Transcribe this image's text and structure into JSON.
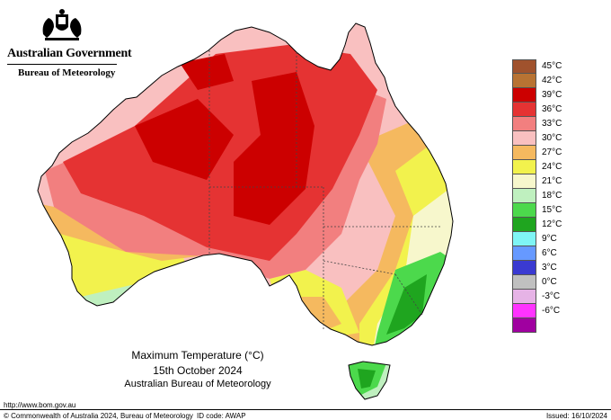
{
  "header": {
    "government": "Australian Government",
    "bureau": "Bureau of Meteorology"
  },
  "map": {
    "title_line1": "Maximum Temperature (°C)",
    "title_line2": "15th October 2024",
    "title_line3": "Australian Bureau of Meteorology"
  },
  "legend": {
    "items": [
      {
        "label": "45°C",
        "color": "#a0522d"
      },
      {
        "label": "42°C",
        "color": "#b87333"
      },
      {
        "label": "39°C",
        "color": "#cc0000"
      },
      {
        "label": "36°C",
        "color": "#e53333"
      },
      {
        "label": "33°C",
        "color": "#f27f7f"
      },
      {
        "label": "30°C",
        "color": "#f9c0c0"
      },
      {
        "label": "27°C",
        "color": "#f5b95f"
      },
      {
        "label": "24°C",
        "color": "#f2f24d"
      },
      {
        "label": "21°C",
        "color": "#f7f7cc"
      },
      {
        "label": "18°C",
        "color": "#bff0bf"
      },
      {
        "label": "15°C",
        "color": "#4cd94c"
      },
      {
        "label": "12°C",
        "color": "#1fa51f"
      },
      {
        "label": "9°C",
        "color": "#7ff5f5"
      },
      {
        "label": "6°C",
        "color": "#6699ff"
      },
      {
        "label": "3°C",
        "color": "#3a3ad1"
      },
      {
        "label": "0°C",
        "color": "#c0c0c0"
      },
      {
        "label": "-3°C",
        "color": "#e6b3e6"
      },
      {
        "label": "-6°C",
        "color": "#ff33ff"
      },
      {
        "label": "",
        "color": "#a000a0"
      }
    ]
  },
  "footer": {
    "url": "http://www.bom.gov.au",
    "copyright": "© Commonwealth of Australia 2024, Bureau of Meteorology",
    "id_code": "ID code: AWAP",
    "issued": "Issued: 16/10/2024"
  }
}
